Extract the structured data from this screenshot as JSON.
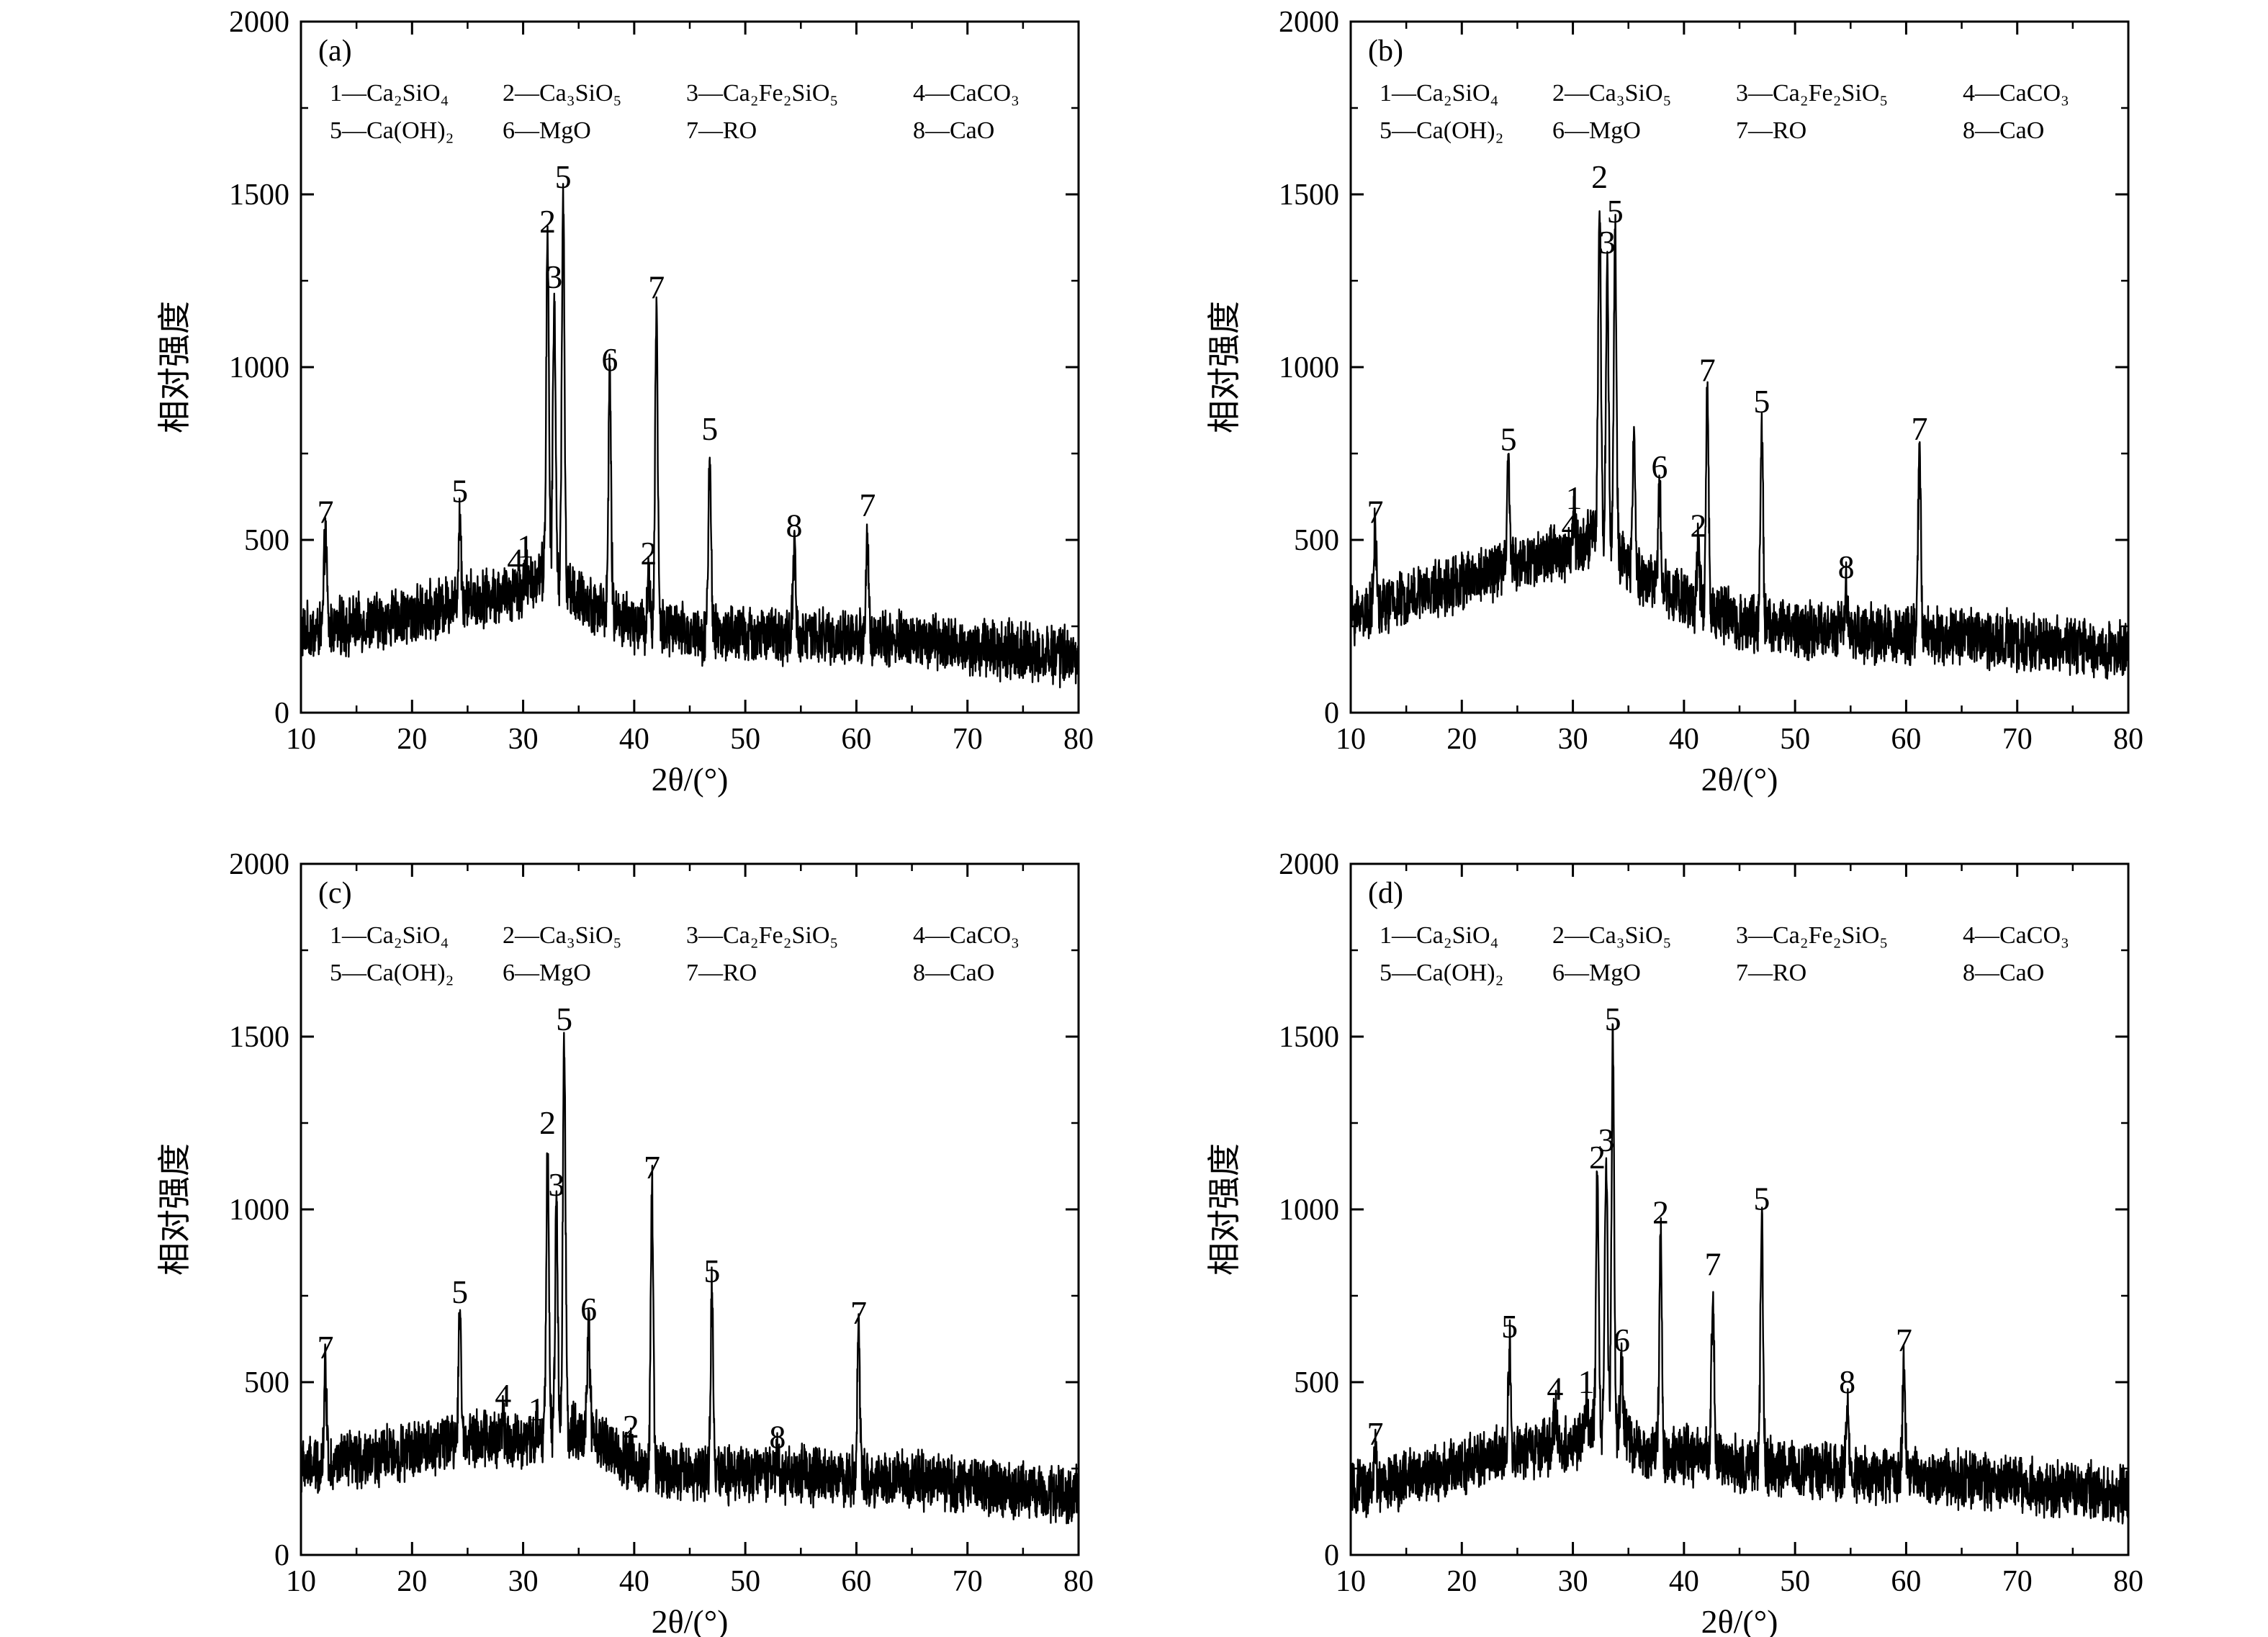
{
  "figure": {
    "legend_lines": [
      [
        "1—Ca₂SiO₄",
        "2—Ca₃SiO₅",
        "3—Ca₂Fe₂SiO₅",
        "4—CaCO₃"
      ],
      [
        "5—Ca(OH)₂",
        "6—MgO",
        "7—RO",
        "8—CaO"
      ]
    ],
    "colors": {
      "line": "#000000",
      "background": "#ffffff"
    }
  },
  "chart_data": [
    {
      "type": "line",
      "panel_label": "(a)",
      "xlabel": "2θ/(°)",
      "ylabel": "相对强度",
      "xlim": [
        10,
        80
      ],
      "ylim": [
        0,
        2000
      ],
      "xticks": [
        10,
        20,
        30,
        40,
        50,
        60,
        70,
        80
      ],
      "yticks": [
        0,
        500,
        1000,
        1500,
        2000
      ],
      "grid": false,
      "baseline": [
        [
          10,
          230
        ],
        [
          20,
          280
        ],
        [
          25,
          330
        ],
        [
          30,
          350
        ],
        [
          32,
          420
        ],
        [
          35,
          330
        ],
        [
          40,
          260
        ],
        [
          45,
          230
        ],
        [
          55,
          220
        ],
        [
          65,
          210
        ],
        [
          80,
          160
        ]
      ],
      "peaks": [
        {
          "x": 12.2,
          "y": 520,
          "label": "7"
        },
        {
          "x": 24.3,
          "y": 580,
          "label": "5"
        },
        {
          "x": 29.3,
          "y": 380,
          "label": "4"
        },
        {
          "x": 30.2,
          "y": 420,
          "label": "1"
        },
        {
          "x": 32.2,
          "y": 1360,
          "label": "2"
        },
        {
          "x": 32.8,
          "y": 1200,
          "label": "3"
        },
        {
          "x": 33.6,
          "y": 1490,
          "label": "5"
        },
        {
          "x": 37.8,
          "y": 960,
          "label": "6"
        },
        {
          "x": 41.3,
          "y": 400,
          "label": "2"
        },
        {
          "x": 42.0,
          "y": 1170,
          "label": "7"
        },
        {
          "x": 46.8,
          "y": 760,
          "label": "5"
        },
        {
          "x": 54.4,
          "y": 480,
          "label": "8"
        },
        {
          "x": 61.0,
          "y": 540,
          "label": "7"
        }
      ]
    },
    {
      "type": "line",
      "panel_label": "(b)",
      "xlabel": "2θ/(°)",
      "ylabel": "相对强度",
      "xlim": [
        10,
        80
      ],
      "ylim": [
        0,
        2000
      ],
      "xticks": [
        10,
        20,
        30,
        40,
        50,
        60,
        70,
        80
      ],
      "yticks": [
        0,
        500,
        1000,
        1500,
        2000
      ],
      "grid": false,
      "baseline": [
        [
          10,
          280
        ],
        [
          15,
          330
        ],
        [
          20,
          380
        ],
        [
          25,
          430
        ],
        [
          30,
          470
        ],
        [
          32,
          520
        ],
        [
          35,
          420
        ],
        [
          40,
          330
        ],
        [
          45,
          260
        ],
        [
          55,
          230
        ],
        [
          65,
          220
        ],
        [
          80,
          180
        ]
      ],
      "peaks": [
        {
          "x": 12.2,
          "y": 520,
          "label": "7"
        },
        {
          "x": 24.2,
          "y": 730,
          "label": "5"
        },
        {
          "x": 29.7,
          "y": 480,
          "label": "4"
        },
        {
          "x": 30.1,
          "y": 560,
          "label": "1"
        },
        {
          "x": 32.4,
          "y": 1490,
          "label": "2"
        },
        {
          "x": 33.1,
          "y": 1300,
          "label": "3"
        },
        {
          "x": 33.8,
          "y": 1390,
          "label": "5"
        },
        {
          "x": 35.5,
          "y": 800,
          "label": ""
        },
        {
          "x": 37.8,
          "y": 650,
          "label": "6"
        },
        {
          "x": 41.3,
          "y": 480,
          "label": "2"
        },
        {
          "x": 42.1,
          "y": 930,
          "label": "7"
        },
        {
          "x": 47.0,
          "y": 840,
          "label": "5"
        },
        {
          "x": 54.6,
          "y": 360,
          "label": "8"
        },
        {
          "x": 61.2,
          "y": 760,
          "label": "7"
        }
      ]
    },
    {
      "type": "line",
      "panel_label": "(c)",
      "xlabel": "2θ/(°)",
      "ylabel": "相对强度",
      "xlim": [
        10,
        80
      ],
      "ylim": [
        0,
        2000
      ],
      "xticks": [
        10,
        20,
        30,
        40,
        50,
        60,
        70,
        80
      ],
      "yticks": [
        0,
        500,
        1000,
        1500,
        2000
      ],
      "grid": false,
      "baseline": [
        [
          10,
          250
        ],
        [
          20,
          300
        ],
        [
          25,
          340
        ],
        [
          30,
          330
        ],
        [
          33,
          360
        ],
        [
          36,
          350
        ],
        [
          40,
          250
        ],
        [
          45,
          240
        ],
        [
          55,
          230
        ],
        [
          65,
          220
        ],
        [
          80,
          170
        ]
      ],
      "peaks": [
        {
          "x": 12.2,
          "y": 540,
          "label": "7"
        },
        {
          "x": 24.3,
          "y": 700,
          "label": "5"
        },
        {
          "x": 28.2,
          "y": 400,
          "label": "4"
        },
        {
          "x": 31.2,
          "y": 360,
          "label": "1"
        },
        {
          "x": 32.2,
          "y": 1190,
          "label": "2"
        },
        {
          "x": 33.0,
          "y": 1010,
          "label": "3"
        },
        {
          "x": 33.7,
          "y": 1490,
          "label": "5"
        },
        {
          "x": 35.9,
          "y": 650,
          "label": "6"
        },
        {
          "x": 39.7,
          "y": 310,
          "label": "2"
        },
        {
          "x": 41.6,
          "y": 1060,
          "label": "7"
        },
        {
          "x": 47.0,
          "y": 760,
          "label": "5"
        },
        {
          "x": 52.9,
          "y": 280,
          "label": "8"
        },
        {
          "x": 60.2,
          "y": 640,
          "label": "7"
        }
      ]
    },
    {
      "type": "line",
      "panel_label": "(d)",
      "xlabel": "2θ/(°)",
      "ylabel": "相对强度",
      "xlim": [
        10,
        80
      ],
      "ylim": [
        0,
        2000
      ],
      "xticks": [
        10,
        20,
        30,
        40,
        50,
        60,
        70,
        80
      ],
      "yticks": [
        0,
        500,
        1000,
        1500,
        2000
      ],
      "grid": false,
      "baseline": [
        [
          10,
          180
        ],
        [
          20,
          260
        ],
        [
          25,
          300
        ],
        [
          30,
          320
        ],
        [
          33,
          380
        ],
        [
          36,
          300
        ],
        [
          40,
          290
        ],
        [
          45,
          260
        ],
        [
          55,
          240
        ],
        [
          65,
          220
        ],
        [
          80,
          170
        ]
      ],
      "peaks": [
        {
          "x": 12.2,
          "y": 290,
          "label": "7"
        },
        {
          "x": 24.3,
          "y": 600,
          "label": "5"
        },
        {
          "x": 28.4,
          "y": 420,
          "label": "4"
        },
        {
          "x": 31.2,
          "y": 440,
          "label": "1"
        },
        {
          "x": 32.2,
          "y": 1090,
          "label": "2"
        },
        {
          "x": 33.0,
          "y": 1140,
          "label": "3"
        },
        {
          "x": 33.6,
          "y": 1490,
          "label": "5"
        },
        {
          "x": 34.4,
          "y": 560,
          "label": "6"
        },
        {
          "x": 37.9,
          "y": 930,
          "label": "2"
        },
        {
          "x": 42.6,
          "y": 780,
          "label": "7"
        },
        {
          "x": 47.0,
          "y": 970,
          "label": "5"
        },
        {
          "x": 54.7,
          "y": 440,
          "label": "8"
        },
        {
          "x": 59.8,
          "y": 560,
          "label": "7"
        }
      ]
    }
  ]
}
